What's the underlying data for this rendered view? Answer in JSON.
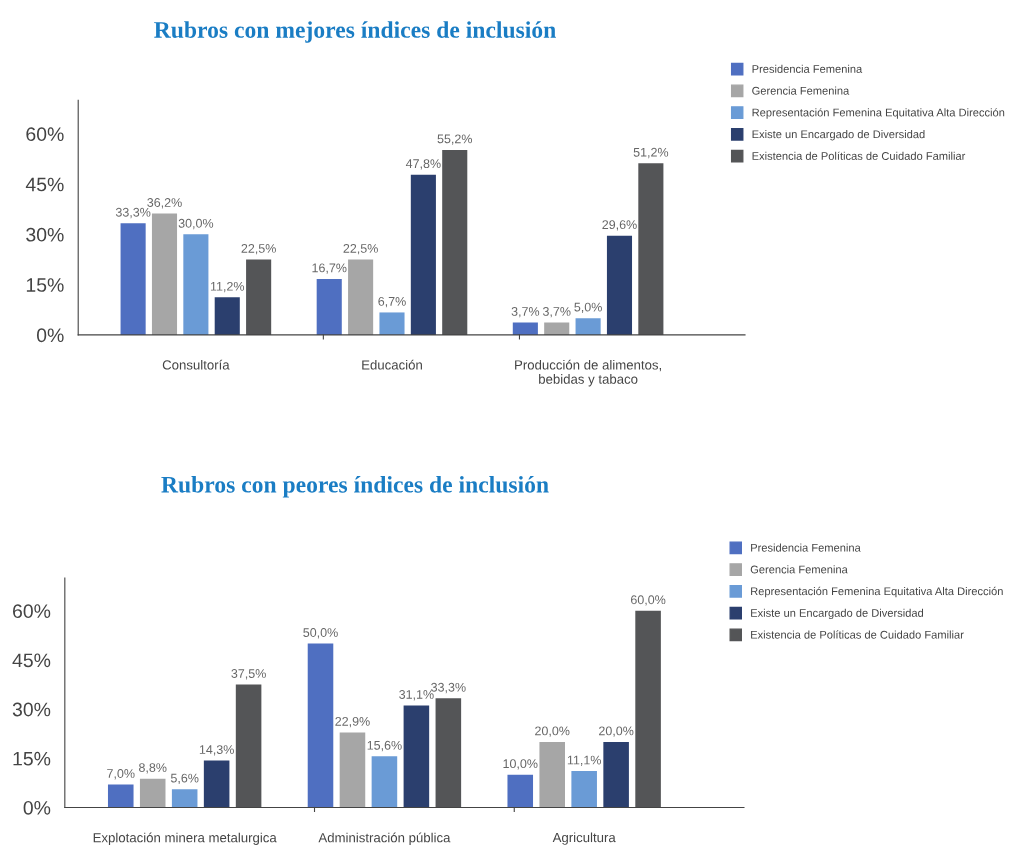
{
  "chart_data": [
    {
      "type": "bar",
      "title": "Rubros con mejores índices de inclusión",
      "categories": [
        "Consultoría",
        "Educación",
        "Producción de alimentos,\nbebidas y tabaco"
      ],
      "series": [
        {
          "name": "Presidencia Femenina",
          "color": "#4f6fc1",
          "values": [
            33.3,
            16.7,
            3.7
          ],
          "value_labels": [
            "33,3%",
            "16,7%",
            "3,7%"
          ]
        },
        {
          "name": "Gerencia Femenina",
          "color": "#a6a6a6",
          "values": [
            36.2,
            22.5,
            3.7
          ],
          "value_labels": [
            "36,2%",
            "22,5%",
            "3,7%"
          ]
        },
        {
          "name": "Representación Femenina Equitativa Alta Dirección",
          "color": "#6a9bd6",
          "values": [
            30.0,
            6.7,
            5.0
          ],
          "value_labels": [
            "30,0%",
            "6,7%",
            "5,0%"
          ]
        },
        {
          "name": "Existe un Encargado de Diversidad",
          "color": "#2b3f6e",
          "values": [
            11.2,
            47.8,
            29.6
          ],
          "value_labels": [
            "11,2%",
            "47,8%",
            "29,6%"
          ]
        },
        {
          "name": "Existencia de Políticas de Cuidado Familiar",
          "color": "#545557",
          "values": [
            22.5,
            55.2,
            51.2
          ],
          "value_labels": [
            "22,5%",
            "55,2%",
            "51,2%"
          ]
        }
      ],
      "ylim": [
        0,
        70
      ],
      "yticks": [
        {
          "value": 0,
          "label": "0%"
        },
        {
          "value": 15,
          "label": "15%"
        },
        {
          "value": 30,
          "label": "30%"
        },
        {
          "value": 45,
          "label": "45%"
        },
        {
          "value": 60,
          "label": "60%"
        }
      ],
      "grid": false,
      "legend": "right"
    },
    {
      "type": "bar",
      "title": "Rubros con peores índices de inclusión",
      "categories": [
        "Explotación minera metalurgica",
        "Administración pública",
        "Agricultura"
      ],
      "series": [
        {
          "name": "Presidencia Femenina",
          "color": "#4f6fc1",
          "values": [
            7.0,
            50.0,
            10.0
          ],
          "value_labels": [
            "7,0%",
            "50,0%",
            "10,0%"
          ]
        },
        {
          "name": "Gerencia Femenina",
          "color": "#a6a6a6",
          "values": [
            8.8,
            22.9,
            20.0
          ],
          "value_labels": [
            "8,8%",
            "22,9%",
            "20,0%"
          ]
        },
        {
          "name": "Representación Femenina Equitativa Alta Dirección",
          "color": "#6a9bd6",
          "values": [
            5.6,
            15.6,
            11.1
          ],
          "value_labels": [
            "5,6%",
            "15,6%",
            "11,1%"
          ]
        },
        {
          "name": "Existe un Encargado de Diversidad",
          "color": "#2b3f6e",
          "values": [
            14.3,
            31.1,
            20.0
          ],
          "value_labels": [
            "14,3%",
            "31,1%",
            "20,0%"
          ]
        },
        {
          "name": "Existencia de Políticas de Cuidado Familiar",
          "color": "#545557",
          "values": [
            37.5,
            33.3,
            60.0
          ],
          "value_labels": [
            "37,5%",
            "33,3%",
            "60,0%"
          ]
        }
      ],
      "ylim": [
        0,
        70
      ],
      "yticks": [
        {
          "value": 0,
          "label": "0%"
        },
        {
          "value": 15,
          "label": "15%"
        },
        {
          "value": 30,
          "label": "30%"
        },
        {
          "value": 45,
          "label": "45%"
        },
        {
          "value": 60,
          "label": "60%"
        }
      ],
      "grid": false,
      "legend": "right"
    }
  ]
}
